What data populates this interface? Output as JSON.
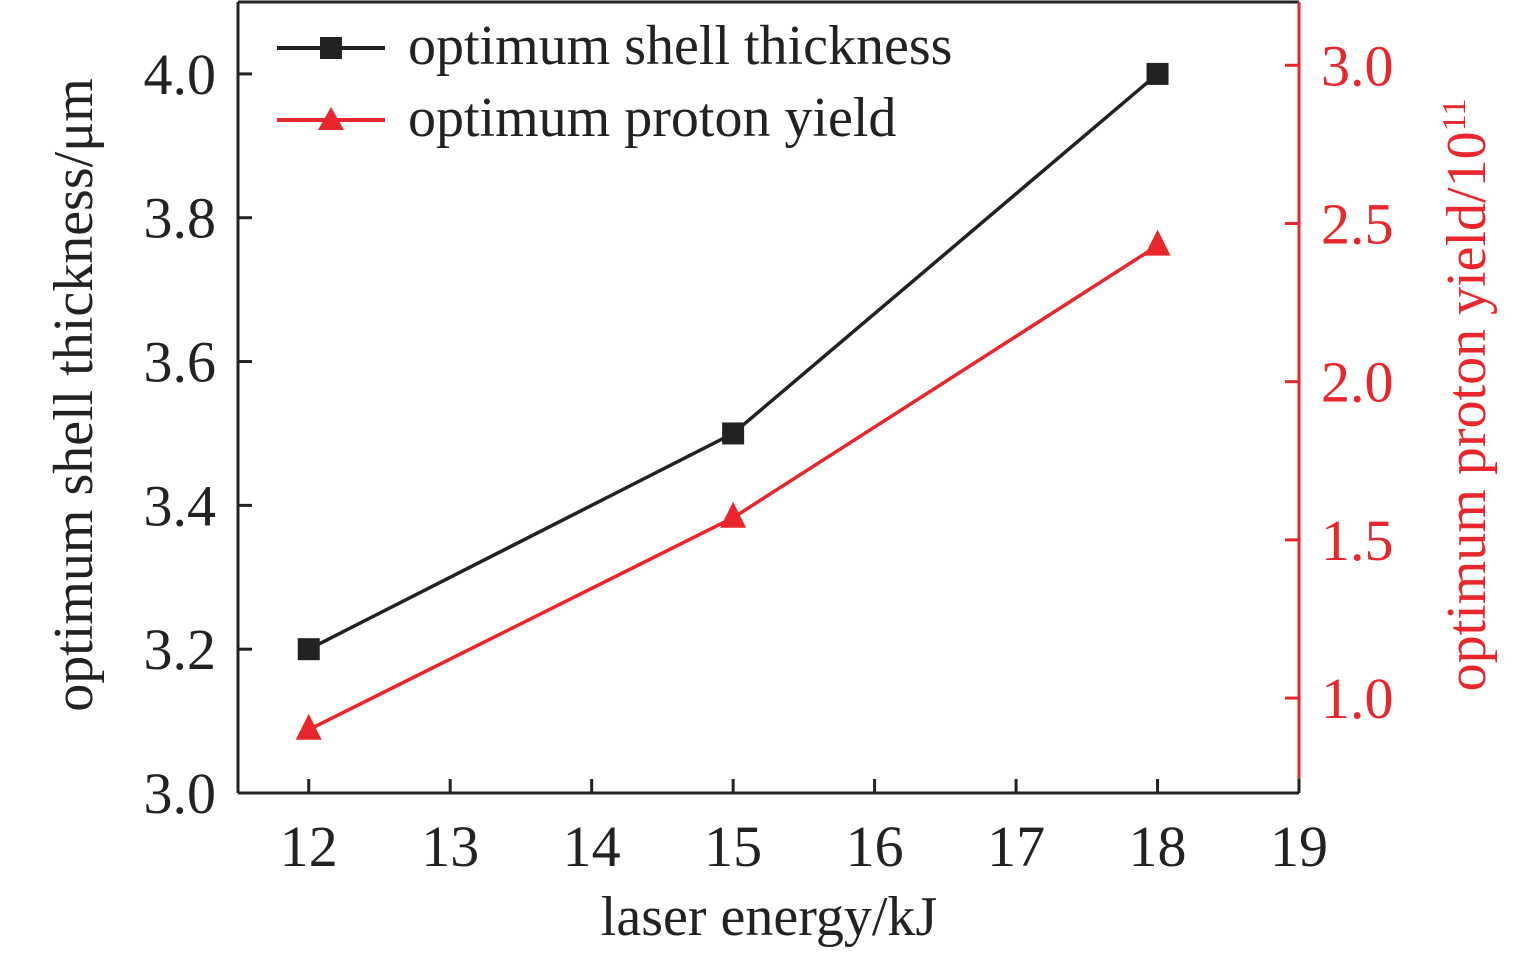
{
  "chart_data": {
    "type": "line",
    "x": [
      12,
      15,
      18
    ],
    "xlim": [
      11.5,
      19
    ],
    "xticks": [
      "12",
      "13",
      "14",
      "15",
      "16",
      "17",
      "18",
      "19"
    ],
    "xlabel": "laser energy/kJ",
    "ylabel": "optimum shell thickness/μm",
    "ylim": [
      3.0,
      4.1
    ],
    "yticks": [
      "3.0",
      "3.2",
      "3.4",
      "3.6",
      "3.8",
      "4.0"
    ],
    "y2label_main": "optimum proton yield/10",
    "y2label_sup": "11",
    "y2lim": [
      0.7,
      3.2
    ],
    "y2ticks": [
      "1.0",
      "1.5",
      "2.0",
      "2.5",
      "3.0"
    ],
    "series": [
      {
        "name": "optimum shell thickness",
        "axis": "left",
        "marker": "square",
        "color": "#222222",
        "values": [
          3.2,
          3.5,
          4.0
        ]
      },
      {
        "name": "optimum proton yield",
        "axis": "right",
        "marker": "triangle",
        "color": "#e8262b",
        "values": [
          0.9,
          1.57,
          2.43
        ]
      }
    ],
    "legend": "top-left",
    "grid": false
  },
  "colors": {
    "left_axis": "#222222",
    "right_axis": "#e8262b"
  }
}
